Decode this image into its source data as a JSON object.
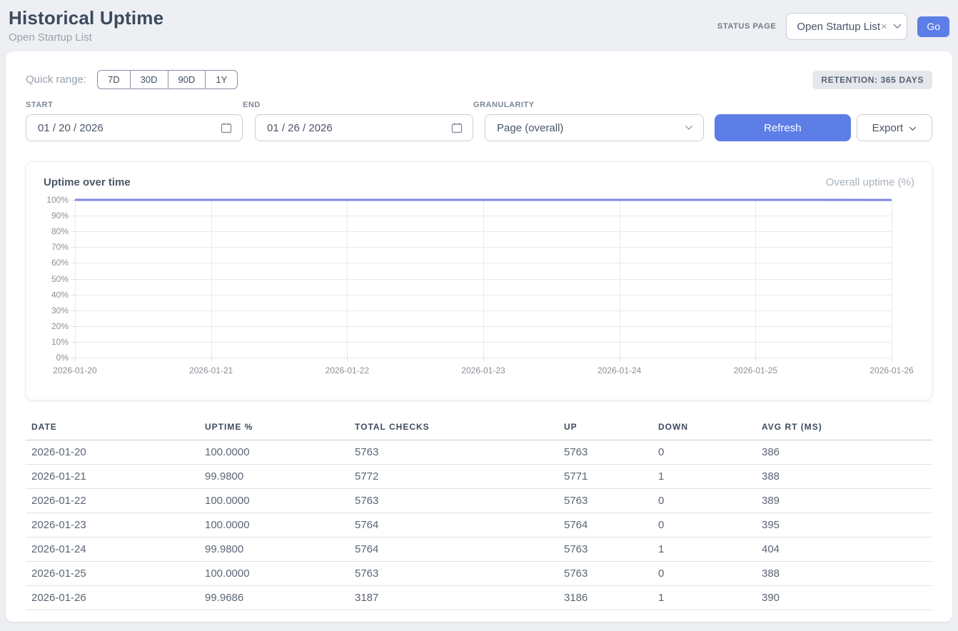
{
  "header": {
    "title": "Historical Uptime",
    "subtitle": "Open Startup List",
    "status_page_label": "STATUS PAGE",
    "status_page_value": "Open Startup List",
    "clear_icon": "×",
    "go_label": "Go"
  },
  "filters": {
    "quick_range_label": "Quick range:",
    "quick_ranges": [
      "7D",
      "30D",
      "90D",
      "1Y"
    ],
    "retention_badge": "RETENTION: 365 DAYS",
    "start_label": "START",
    "start_value": "01 / 20 / 2026",
    "end_label": "END",
    "end_value": "01 / 26 / 2026",
    "granularity_label": "GRANULARITY",
    "granularity_value": "Page (overall)",
    "refresh_label": "Refresh",
    "export_label": "Export"
  },
  "chart": {
    "title": "Uptime over time",
    "legend": "Overall uptime (%)"
  },
  "chart_data": {
    "type": "line",
    "title": "Uptime over time",
    "x": [
      "2026-01-20",
      "2026-01-21",
      "2026-01-22",
      "2026-01-23",
      "2026-01-24",
      "2026-01-25",
      "2026-01-26"
    ],
    "series": [
      {
        "name": "Overall uptime (%)",
        "values": [
          100.0,
          99.98,
          100.0,
          100.0,
          99.98,
          100.0,
          99.9686
        ]
      }
    ],
    "ylim": [
      0,
      100
    ],
    "y_tick_step": 10,
    "y_tick_suffix": "%",
    "grid": true,
    "legend_position": "top-right",
    "line_color": "#8083e6"
  },
  "table": {
    "columns": [
      "DATE",
      "UPTIME %",
      "TOTAL CHECKS",
      "UP",
      "DOWN",
      "AVG RT (MS)"
    ],
    "rows": [
      [
        "2026-01-20",
        "100.0000",
        "5763",
        "5763",
        "0",
        "386"
      ],
      [
        "2026-01-21",
        "99.9800",
        "5772",
        "5771",
        "1",
        "388"
      ],
      [
        "2026-01-22",
        "100.0000",
        "5763",
        "5763",
        "0",
        "389"
      ],
      [
        "2026-01-23",
        "100.0000",
        "5764",
        "5764",
        "0",
        "395"
      ],
      [
        "2026-01-24",
        "99.9800",
        "5764",
        "5763",
        "1",
        "404"
      ],
      [
        "2026-01-25",
        "100.0000",
        "5763",
        "5763",
        "0",
        "388"
      ],
      [
        "2026-01-26",
        "99.9686",
        "3187",
        "3186",
        "1",
        "390"
      ]
    ]
  },
  "colors": {
    "accent_blue": "#5c7ee6",
    "line_purple": "#8083e6"
  }
}
